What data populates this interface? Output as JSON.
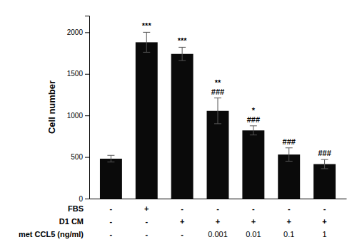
{
  "chart_data": {
    "type": "bar",
    "categories": [
      null,
      null,
      null,
      null,
      null,
      null,
      null
    ],
    "values": [
      480,
      1880,
      1740,
      1055,
      820,
      530,
      415
    ],
    "errors": [
      40,
      120,
      80,
      155,
      55,
      80,
      55
    ],
    "color": "#0a0a0a",
    "y_label": "Cell number",
    "ylim": [
      0,
      2200
    ],
    "yticks": [
      0,
      500,
      1000,
      1500,
      2000
    ],
    "grid": false,
    "tick_labels": "y",
    "annotations": [
      {
        "x": 1,
        "text": "***"
      },
      {
        "x": 2,
        "text": "***"
      },
      {
        "x": 3,
        "text": "###"
      },
      {
        "x": 3,
        "text": "**"
      },
      {
        "x": 4,
        "text": "###"
      },
      {
        "x": 4,
        "text": "*"
      },
      {
        "x": 5,
        "text": "###"
      },
      {
        "x": 6,
        "text": "###"
      }
    ],
    "table_rows": [
      {
        "label": "FBS",
        "values": [
          "-",
          "+",
          "-",
          "-",
          "-",
          "-",
          "-"
        ]
      },
      {
        "label": "D1 CM",
        "values": [
          "-",
          "-",
          "+",
          "+",
          "+",
          "+",
          "+"
        ]
      },
      {
        "label": "met CCL5 (ng/ml)",
        "values": [
          "-",
          "-",
          "-",
          "0.001",
          "0.01",
          "0.1",
          "1"
        ]
      }
    ]
  }
}
